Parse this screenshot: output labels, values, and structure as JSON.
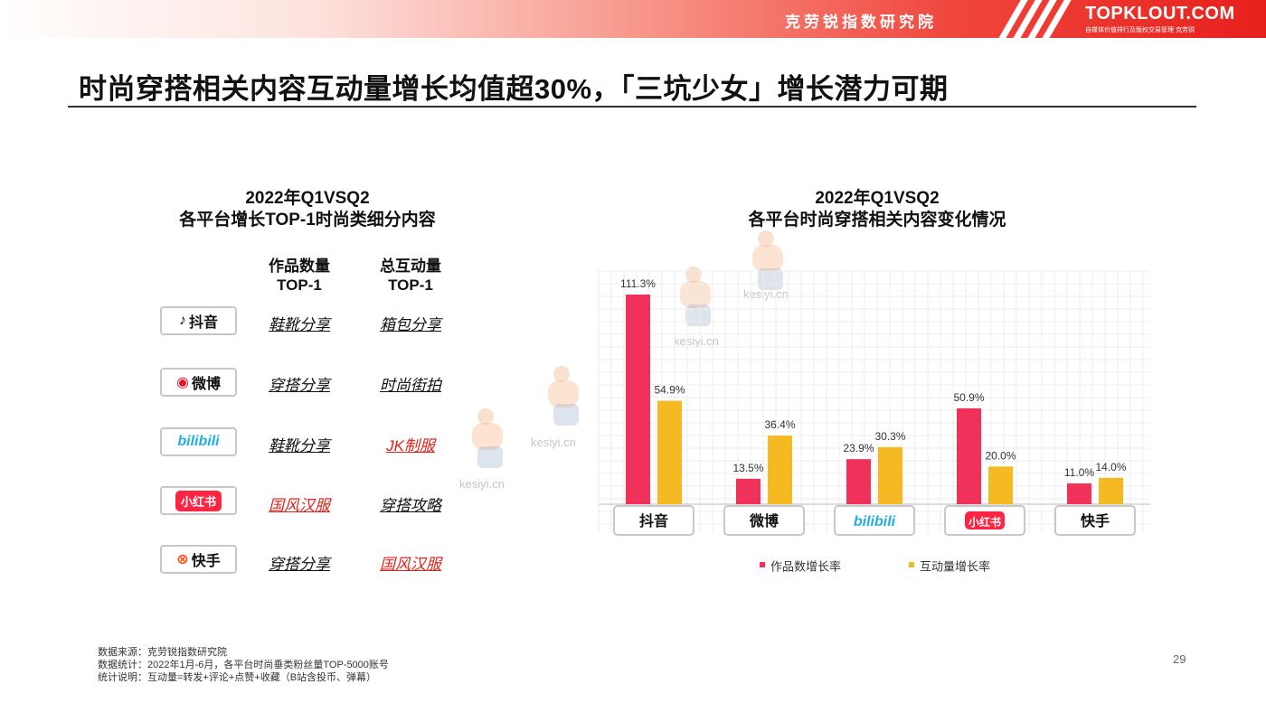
{
  "header": {
    "brand_cn": "克劳锐指数研究院",
    "brand_en": "TOPKLOUT.COM",
    "brand_sub": "自媒体价值排行及版权交易管理 克劳锐"
  },
  "title": "时尚穿搭相关内容互动量增长均值超30%，「三坑少女」增长潜力可期",
  "left_table": {
    "title_line1": "2022年Q1VSQ2",
    "title_line2": "各平台增长TOP-1时尚类细分内容",
    "col1_line1": "作品数量",
    "col1_line2": "TOP-1",
    "col2_line1": "总互动量",
    "col2_line2": "TOP-1",
    "rows": [
      {
        "platform": "抖音",
        "works": "鞋靴分享",
        "interactions": "箱包分享"
      },
      {
        "platform": "微博",
        "works": "穿搭分享",
        "interactions": "时尚街拍"
      },
      {
        "platform": "bilibili",
        "works": "鞋靴分享",
        "interactions": "JK制服"
      },
      {
        "platform": "小红书",
        "works": "国风汉服",
        "interactions": "穿搭攻略"
      },
      {
        "platform": "快手",
        "works": "穿搭分享",
        "interactions": "国风汉服"
      }
    ],
    "colors": {
      "highlight": "#e2231a",
      "normal": "#111111"
    }
  },
  "chart_title_line1": "2022年Q1VSQ2",
  "chart_title_line2": "各平台时尚穿搭相关内容变化情况",
  "chart_data": {
    "type": "bar",
    "categories": [
      "抖音",
      "微博",
      "bilibili",
      "小红书",
      "快手"
    ],
    "series": [
      {
        "name": "作品数增长率",
        "values": [
          111.3,
          13.5,
          23.9,
          50.9,
          11.0
        ],
        "labels": [
          "111.3%",
          "13.5%",
          "23.9%",
          "50.9%",
          "11.0%"
        ],
        "color": "#f0315a"
      },
      {
        "name": "互动量增长率",
        "values": [
          54.9,
          36.4,
          30.3,
          20.0,
          14.0
        ],
        "labels": [
          "54.9%",
          "36.4%",
          "30.3%",
          "20.0%",
          "14.0%"
        ],
        "color": "#f5b921"
      }
    ],
    "ylim": [
      0,
      120
    ],
    "grid": true,
    "legend": "bottom"
  },
  "watermark": "kesiyi.cn",
  "footnote": {
    "line1": "数据来源：克劳锐指数研究院",
    "line2": "数据统计：2022年1月-6月，各平台时尚垂类粉丝量TOP-5000账号",
    "line3": "统计说明：互动量=转发+评论+点赞+收藏（B站含投币、弹幕）"
  },
  "page_number": "29"
}
